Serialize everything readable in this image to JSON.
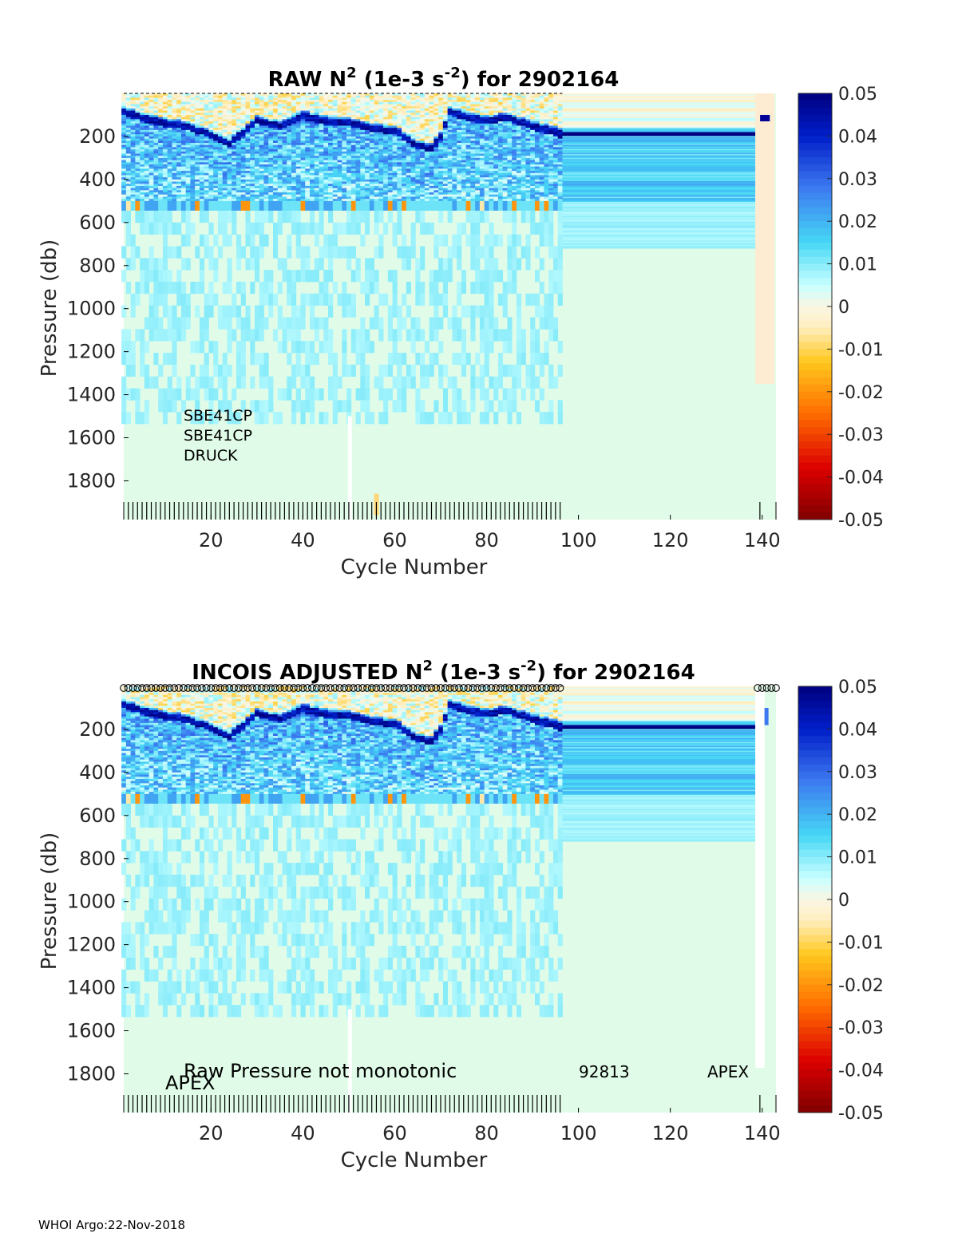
{
  "chart_data": [
    {
      "type": "heatmap",
      "title_parts": [
        "RAW N",
        "2",
        " (1e-3 s",
        "-2",
        ") for 2902164"
      ],
      "xlabel": "Cycle Number",
      "ylabel": "Pressure (db)",
      "xlim": [
        1,
        143
      ],
      "ylim": [
        1980,
        0
      ],
      "xticks": [
        20,
        40,
        60,
        80,
        100,
        120,
        140
      ],
      "yticks": [
        200,
        400,
        600,
        800,
        1000,
        1200,
        1400,
        1600,
        1800
      ],
      "colorbar": {
        "min": -0.05,
        "max": 0.05,
        "ticks": [
          "0.05",
          "0.04",
          "0.03",
          "0.02",
          "0.01",
          "0",
          "-0.01",
          "-0.02",
          "-0.03",
          "-0.04",
          "-0.05"
        ]
      },
      "data_cycles": [
        1,
        96
      ],
      "late_cycles": [
        138,
        143
      ],
      "mixed_layer_depth_db": [
        [
          1,
          80
        ],
        [
          5,
          110
        ],
        [
          10,
          135
        ],
        [
          15,
          150
        ],
        [
          20,
          190
        ],
        [
          24,
          230
        ],
        [
          28,
          160
        ],
        [
          30,
          120
        ],
        [
          35,
          150
        ],
        [
          40,
          100
        ],
        [
          45,
          125
        ],
        [
          50,
          130
        ],
        [
          55,
          160
        ],
        [
          60,
          170
        ],
        [
          65,
          240
        ],
        [
          68,
          250
        ],
        [
          70,
          200
        ],
        [
          72,
          80
        ],
        [
          76,
          110
        ],
        [
          80,
          120
        ],
        [
          85,
          110
        ],
        [
          90,
          150
        ],
        [
          95,
          175
        ],
        [
          96,
          185
        ],
        [
          139,
          110
        ],
        [
          142,
          130
        ]
      ],
      "annotations": [
        "SBE41CP",
        "SBE41CP",
        "DRUCK"
      ]
    },
    {
      "type": "heatmap",
      "title_parts": [
        "INCOIS  ADJUSTED N",
        "2",
        " (1e-3 s",
        "-2",
        ") for 2902164"
      ],
      "xlabel": "Cycle Number",
      "ylabel": "Pressure (db)",
      "xlim": [
        1,
        143
      ],
      "ylim": [
        1980,
        0
      ],
      "xticks": [
        20,
        40,
        60,
        80,
        100,
        120,
        140
      ],
      "yticks": [
        200,
        400,
        600,
        800,
        1000,
        1200,
        1400,
        1600,
        1800
      ],
      "colorbar": {
        "min": -0.05,
        "max": 0.05,
        "ticks": [
          "0.05",
          "0.04",
          "0.03",
          "0.02",
          "0.01",
          "0",
          "-0.01",
          "-0.02",
          "-0.03",
          "-0.04",
          "-0.05"
        ]
      },
      "qc_marker_cycles": [
        [
          1,
          96
        ],
        [
          139,
          143
        ]
      ],
      "annotations": [
        "Raw Pressure not monotonic",
        "APEX",
        "92813",
        "APEX"
      ]
    }
  ],
  "footer": "WHOI Argo:22-Nov-2018"
}
